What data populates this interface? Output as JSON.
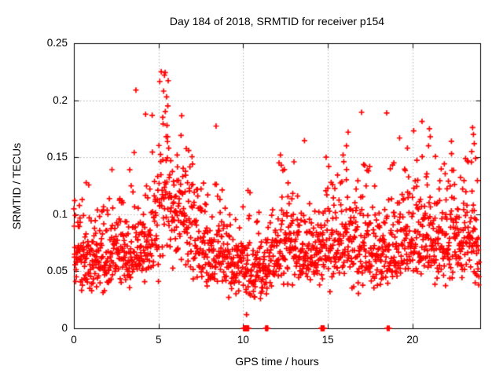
{
  "figure": {
    "title": "Day 184 of 2018, SRMTID for receiver p154",
    "xlabel": "GPS time / hours",
    "ylabel": "SRMTID / TECUs"
  },
  "chart_data": {
    "type": "scatter",
    "title": "Day 184 of 2018, SRMTID for receiver p154",
    "xlabel": "GPS time / hours",
    "ylabel": "SRMTID / TECUs",
    "series_name": "SRMTID",
    "xlim": [
      0,
      24
    ],
    "ylim": [
      0,
      0.25
    ],
    "xticks": [
      0,
      5,
      10,
      15,
      20
    ],
    "xtick_labels": [
      "0",
      "5",
      "10",
      "15",
      "20"
    ],
    "yticks": [
      0,
      0.05,
      0.1,
      0.15,
      0.2,
      0.25
    ],
    "ytick_labels": [
      "0",
      "0.05",
      "0.1",
      "0.15",
      "0.2",
      "0.25"
    ],
    "grid": true,
    "grid_color": "#b0b0b0",
    "axis_color": "#000000",
    "marker": {
      "symbol": "plus",
      "color": "#ff0000",
      "size": 7,
      "stroke": 1.7
    },
    "generator": {
      "seed": 20180184,
      "count": 1700,
      "t_start": 0.0,
      "t_end": 23.95,
      "t_jitter": 0.012,
      "sigma": 0.3,
      "sigma_peak": 0.33,
      "peak_window": [
        5.0,
        5.9
      ],
      "v_min": 0.026,
      "v_max": 0.225,
      "envelope": [
        [
          0,
          0.066
        ],
        [
          0.5,
          0.063
        ],
        [
          1,
          0.06
        ],
        [
          1.5,
          0.062
        ],
        [
          2,
          0.064
        ],
        [
          2.5,
          0.066
        ],
        [
          3,
          0.068
        ],
        [
          3.5,
          0.071
        ],
        [
          4,
          0.074
        ],
        [
          4.5,
          0.082
        ],
        [
          4.9,
          0.092
        ],
        [
          5.2,
          0.118
        ],
        [
          5.45,
          0.135
        ],
        [
          5.7,
          0.118
        ],
        [
          6,
          0.1
        ],
        [
          6.5,
          0.093
        ],
        [
          7,
          0.09
        ],
        [
          7.5,
          0.085
        ],
        [
          8,
          0.075
        ],
        [
          8.5,
          0.068
        ],
        [
          9,
          0.062
        ],
        [
          9.5,
          0.06
        ],
        [
          10,
          0.057
        ],
        [
          10.5,
          0.054
        ],
        [
          11,
          0.051
        ],
        [
          11.5,
          0.056
        ],
        [
          12,
          0.068
        ],
        [
          12.3,
          0.075
        ],
        [
          12.7,
          0.073
        ],
        [
          13,
          0.072
        ],
        [
          13.5,
          0.068
        ],
        [
          14,
          0.064
        ],
        [
          14.5,
          0.068
        ],
        [
          15,
          0.07
        ],
        [
          15.5,
          0.074
        ],
        [
          16,
          0.082
        ],
        [
          16.3,
          0.084
        ],
        [
          16.7,
          0.078
        ],
        [
          17,
          0.076
        ],
        [
          17.5,
          0.072
        ],
        [
          18,
          0.068
        ],
        [
          18.5,
          0.066
        ],
        [
          19,
          0.074
        ],
        [
          19.5,
          0.08
        ],
        [
          19.8,
          0.084
        ],
        [
          20.3,
          0.08
        ],
        [
          20.8,
          0.085
        ],
        [
          21.2,
          0.083
        ],
        [
          21.6,
          0.08
        ],
        [
          22,
          0.08
        ],
        [
          22.4,
          0.082
        ],
        [
          22.8,
          0.08
        ],
        [
          23.2,
          0.082
        ],
        [
          23.6,
          0.085
        ],
        [
          23.95,
          0.082
        ]
      ]
    },
    "landmark_points": [
      [
        0.05,
        0.112
      ],
      [
        3.3,
        0.139
      ],
      [
        5.25,
        0.185
      ],
      [
        5.3,
        0.208
      ],
      [
        5.35,
        0.222
      ],
      [
        5.4,
        0.19
      ],
      [
        5.45,
        0.168
      ],
      [
        5.5,
        0.178
      ],
      [
        5.55,
        0.195
      ],
      [
        5.6,
        0.158
      ],
      [
        6.1,
        0.152
      ],
      [
        10.2,
        0.012
      ],
      [
        12.2,
        0.152
      ],
      [
        12.25,
        0.143
      ],
      [
        13.0,
        0.146
      ],
      [
        14.9,
        0.15
      ],
      [
        15.9,
        0.152
      ],
      [
        16.1,
        0.16
      ],
      [
        16.2,
        0.172
      ],
      [
        17.4,
        0.138
      ],
      [
        18.9,
        0.145
      ],
      [
        19.7,
        0.158
      ],
      [
        20.95,
        0.16
      ],
      [
        21.0,
        0.175
      ],
      [
        21.05,
        0.168
      ],
      [
        22.3,
        0.164
      ],
      [
        23.5,
        0.155
      ],
      [
        23.55,
        0.176
      ],
      [
        23.6,
        0.17
      ],
      [
        23.65,
        0.162
      ]
    ],
    "zero_runs": [
      [
        10.02,
        10.32
      ],
      [
        11.33,
        11.46
      ],
      [
        14.6,
        14.78
      ],
      [
        18.51,
        18.53
      ],
      [
        18.61,
        18.63
      ]
    ],
    "zero_step": 0.015
  }
}
